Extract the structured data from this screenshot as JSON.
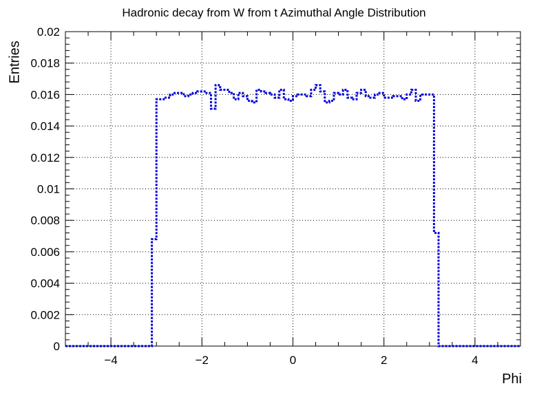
{
  "chart_data": {
    "type": "line",
    "title": "Hadronic decay from W from t Azimuthal Angle Distribution",
    "xlabel": "Phi",
    "ylabel": "Entries",
    "xlim": [
      -5,
      5
    ],
    "ylim": [
      0,
      0.02
    ],
    "x_ticks": [
      -4,
      -2,
      0,
      2,
      4
    ],
    "x_tick_labels": [
      "−4",
      "−2",
      "0",
      "2",
      "4"
    ],
    "y_ticks": [
      0,
      0.002,
      0.004,
      0.006,
      0.008,
      0.01,
      0.012,
      0.014,
      0.016,
      0.018,
      0.02
    ],
    "y_tick_labels": [
      "0",
      "0.002",
      "0.004",
      "0.006",
      "0.008",
      "0.01",
      "0.012",
      "0.014",
      "0.016",
      "0.018",
      "0.02"
    ],
    "grid": true,
    "line_color": "#0000dd",
    "line_style": "dotted",
    "series": [
      {
        "bin_width": 0.1,
        "x_start": -5.0,
        "values": [
          0,
          0,
          0,
          0,
          0,
          0,
          0,
          0,
          0,
          0,
          0,
          0,
          0,
          0,
          0,
          0,
          0,
          0,
          0,
          0.0068,
          0.0157,
          0.0157,
          0.0158,
          0.016,
          0.0161,
          0.0161,
          0.0159,
          0.016,
          0.0161,
          0.0162,
          0.0162,
          0.0161,
          0.0151,
          0.0166,
          0.0163,
          0.0163,
          0.0161,
          0.0157,
          0.0161,
          0.0159,
          0.0156,
          0.0155,
          0.0163,
          0.0162,
          0.0161,
          0.016,
          0.0158,
          0.0163,
          0.0157,
          0.0156,
          0.0159,
          0.016,
          0.016,
          0.0159,
          0.0163,
          0.0166,
          0.0162,
          0.0155,
          0.0156,
          0.0161,
          0.016,
          0.0163,
          0.0158,
          0.0157,
          0.0161,
          0.0163,
          0.0159,
          0.0158,
          0.016,
          0.0161,
          0.0158,
          0.0158,
          0.0159,
          0.0159,
          0.0157,
          0.016,
          0.0163,
          0.0156,
          0.016,
          0.016,
          0.016,
          0.0072,
          0,
          0,
          0,
          0,
          0,
          0,
          0,
          0,
          0,
          0,
          0,
          0,
          0,
          0,
          0,
          0,
          0,
          0
        ]
      }
    ]
  }
}
